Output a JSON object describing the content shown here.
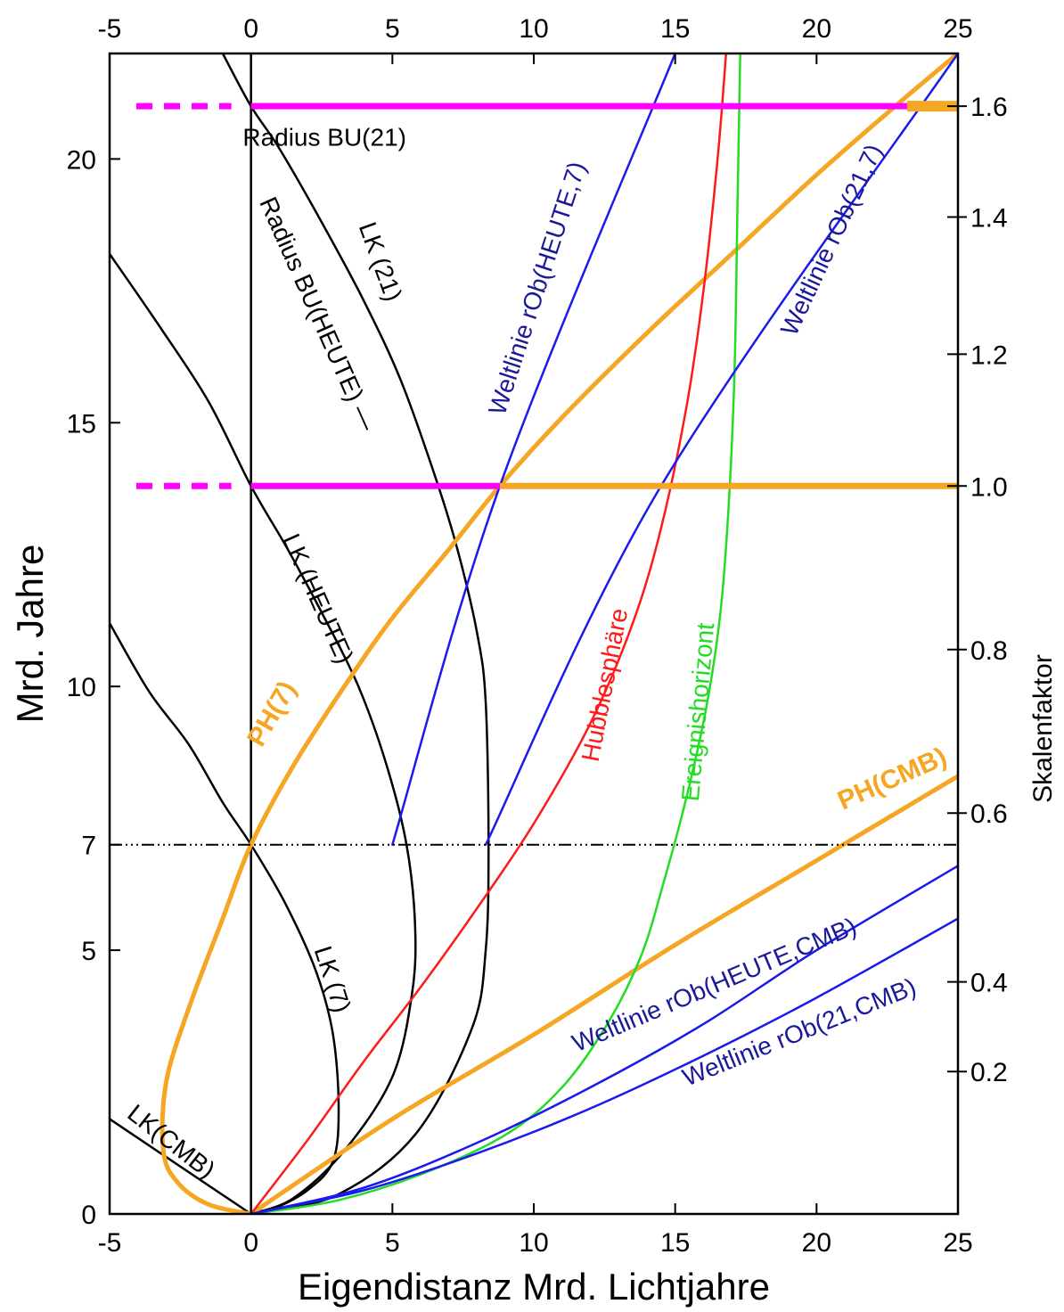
{
  "chart_data": {
    "type": "line",
    "title": "",
    "xlabel": "Eigendistanz Mrd. Lichtjahre",
    "ylabel": "Mrd. Jahre",
    "y2label": "Skalenfaktor",
    "xlim": [
      -5,
      25
    ],
    "ylim": [
      0,
      22
    ],
    "x_ticks": [
      -5,
      0,
      5,
      10,
      15,
      20,
      25
    ],
    "y_ticks": [
      0,
      5,
      7,
      10,
      15,
      20
    ],
    "y2_ticks": [
      "0.2",
      "0.4",
      "0.6",
      "0.8",
      "1.0",
      "1.2",
      "1.4",
      "1.6"
    ],
    "y2_tick_times": [
      2.7,
      4.4,
      7.6,
      10.7,
      13.8,
      16.3,
      18.9,
      21.0
    ],
    "grid": false,
    "colors": {
      "light_cone": "#000000",
      "photon_horizon": "#f5a623",
      "hubble": "#ff1a1a",
      "event_horizon": "#22dd22",
      "worldline": "#1a1aee",
      "radius": "#ff00ff",
      "annotation_blue": "#1a1a99",
      "annotation_orange": "#f5a623"
    },
    "series": [
      {
        "key": "lk_cmb",
        "name": "LK(CMB)",
        "color": "#000000",
        "width": 2.5,
        "x": [
          0,
          -5
        ],
        "y": [
          0,
          1.8
        ]
      },
      {
        "key": "lk_7",
        "name": "LK (7)",
        "color": "#000000",
        "width": 2.5,
        "x": [
          -5,
          -3.6,
          -2.2,
          -1.0,
          0,
          1.2,
          2.3,
          2.9,
          3.1,
          2.9,
          2.0,
          0.8,
          0
        ],
        "y": [
          11.2,
          9.9,
          8.9,
          7.8,
          7.0,
          5.9,
          4.6,
          3.4,
          2.0,
          1.0,
          0.45,
          0.1,
          0
        ]
      },
      {
        "key": "lk_heute",
        "name": "LK (HEUTE)",
        "color": "#000000",
        "width": 2.5,
        "x": [
          -5,
          -3.2,
          -1.5,
          0,
          1.3,
          2.6,
          3.8,
          4.8,
          5.5,
          5.8,
          5.7,
          5.0,
          3.3,
          1.5,
          0
        ],
        "y": [
          18.2,
          16.8,
          15.4,
          13.8,
          12.6,
          11.3,
          10.0,
          8.5,
          7.0,
          5.5,
          4.2,
          2.6,
          1.2,
          0.3,
          0
        ]
      },
      {
        "key": "lk_21",
        "name": "LK (21)",
        "color": "#000000",
        "width": 2.5,
        "x": [
          -1.0,
          0,
          1.0,
          2.5,
          4.0,
          5.3,
          6.5,
          7.3,
          8.0,
          8.3,
          8.4,
          8.3,
          7.8,
          5.8,
          3.0,
          0
        ],
        "y": [
          22.0,
          21.0,
          20.2,
          18.8,
          17.3,
          15.8,
          14.0,
          12.6,
          11.0,
          9.7,
          7.0,
          5.0,
          3.5,
          1.5,
          0.35,
          0
        ]
      },
      {
        "key": "bu_axis",
        "name": "",
        "color": "#000000",
        "width": 2.5,
        "x": [
          0,
          0
        ],
        "y": [
          0,
          22
        ]
      },
      {
        "key": "ph_7",
        "name": "PH(7)",
        "color": "#f5a623",
        "width": 5,
        "x": [
          0,
          -1.5,
          -2.6,
          -3.1,
          -3.0,
          -2.2,
          -1.0,
          0,
          1.5,
          3.3,
          5.0,
          7.0,
          8.8,
          11.0,
          14.0,
          17.0,
          20.0,
          23.0,
          25.0
        ],
        "y": [
          0,
          0.18,
          0.6,
          1.2,
          2.5,
          3.9,
          5.6,
          7.0,
          8.5,
          10.0,
          11.3,
          12.6,
          13.8,
          15.1,
          16.7,
          18.2,
          19.7,
          21.1,
          22.0
        ]
      },
      {
        "key": "ph_cmb",
        "name": "PH(CMB)",
        "color": "#f5a623",
        "width": 5,
        "x": [
          0,
          5,
          10,
          15,
          20,
          25
        ],
        "y": [
          0,
          1.8,
          3.4,
          5.1,
          6.7,
          8.3
        ]
      },
      {
        "key": "hubble",
        "name": "Hubblesphäre",
        "color": "#ff1a1a",
        "width": 2.5,
        "x": [
          0,
          2,
          4,
          6,
          8,
          10,
          12,
          13.5,
          14.5,
          15.4,
          16.0,
          16.5,
          16.8
        ],
        "y": [
          0,
          1.4,
          2.9,
          4.3,
          5.8,
          7.4,
          9.3,
          11.2,
          13.0,
          15.3,
          17.5,
          20.0,
          22.0
        ]
      },
      {
        "key": "event_horizon",
        "name": "Ereignishorizont",
        "color": "#22dd22",
        "width": 2.5,
        "x": [
          0,
          3,
          6,
          9,
          11,
          12.6,
          13.8,
          14.6,
          15.4,
          16.1,
          16.6,
          16.9,
          17.1,
          17.2,
          17.3
        ],
        "y": [
          0,
          0.25,
          0.75,
          1.5,
          2.4,
          3.6,
          4.9,
          6.3,
          7.9,
          9.6,
          11.4,
          13.5,
          16.0,
          19.0,
          22.0
        ]
      },
      {
        "key": "wl_heute_7",
        "name": "Weltlinie rOb(HEUTE,7)",
        "color": "#1a1aee",
        "width": 2.5,
        "x": [
          5.0,
          8.8,
          15.0
        ],
        "y": [
          7.0,
          13.8,
          22.0
        ]
      },
      {
        "key": "wl_21_7",
        "name": "Weltlinie rOb(21,7)",
        "color": "#1a1aee",
        "width": 2.5,
        "x": [
          8.3,
          14.5,
          25.0
        ],
        "y": [
          7.0,
          13.8,
          22.0
        ]
      },
      {
        "key": "wl_heute_cmb",
        "name": "Weltlinie rOb(HEUTE,CMB)",
        "color": "#1a1aee",
        "width": 2.5,
        "x": [
          0,
          4,
          8,
          12,
          16,
          20,
          25
        ],
        "y": [
          0,
          0.5,
          1.35,
          2.4,
          3.6,
          5.0,
          6.6
        ]
      },
      {
        "key": "wl_21_cmb",
        "name": "Weltlinie rOb(21,CMB)",
        "color": "#1a1aee",
        "width": 2.5,
        "x": [
          0,
          4,
          8,
          12,
          16,
          20,
          25
        ],
        "y": [
          0,
          0.45,
          1.15,
          2.0,
          3.0,
          4.1,
          5.6
        ]
      }
    ],
    "horizontal_lines": [
      {
        "key": "bu_21",
        "y": 21.0,
        "x_dotted": [
          -5,
          0
        ],
        "x_solid": [
          0,
          25
        ],
        "color": "#ff00ff",
        "width": 7
      },
      {
        "key": "bu_21_tail",
        "y": 21.0,
        "x_solid": [
          23.2,
          25
        ],
        "color": "#f5a623",
        "width": 12
      },
      {
        "key": "bu_heute",
        "y": 13.8,
        "x_dotted": [
          -5,
          0
        ],
        "x_solid": [
          0,
          8.8
        ],
        "color": "#ff00ff",
        "width": 7
      },
      {
        "key": "bu_heute_tail",
        "y": 13.8,
        "x_solid": [
          8.8,
          25
        ],
        "color": "#f5a623",
        "width": 7
      },
      {
        "key": "t7",
        "y": 7.0,
        "x_dashdot": [
          -5,
          25
        ],
        "color": "#000000",
        "width": 2
      }
    ],
    "annotations": [
      {
        "key": "radius_bu_21",
        "text": "Radius BU(21)",
        "x": 2.6,
        "y": 20.25,
        "rotate": 0,
        "color": "#000000",
        "style": "normal"
      },
      {
        "key": "radius_bu_heute",
        "text": "Radius BU(HEUTE) —",
        "x": 2.1,
        "y": 17.0,
        "rotate": 66,
        "color": "#000000",
        "style": "normal"
      },
      {
        "key": "lk21",
        "text": "LK (21)",
        "x": 4.3,
        "y": 18.0,
        "rotate": 70,
        "color": "#000000",
        "style": "normal"
      },
      {
        "key": "lkheute",
        "text": "LK (HEUTE)",
        "x": 2.1,
        "y": 11.6,
        "rotate": 66,
        "color": "#000000",
        "style": "normal"
      },
      {
        "key": "lk7",
        "text": "LK (7)",
        "x": 2.6,
        "y": 4.4,
        "rotate": 72,
        "color": "#000000",
        "style": "normal"
      },
      {
        "key": "lkcmb",
        "text": "LK(CMB)",
        "x": -3.0,
        "y": 1.25,
        "rotate": 38,
        "color": "#000000",
        "style": "normal"
      },
      {
        "key": "ph7",
        "text": "PH(7)",
        "x": 1.0,
        "y": 9.4,
        "rotate": -60,
        "color": "#f5a623",
        "style": "bold"
      },
      {
        "key": "phcmb",
        "text": "PH(CMB)",
        "x": 22.8,
        "y": 8.1,
        "rotate": -24,
        "color": "#f5a623",
        "style": "bold"
      },
      {
        "key": "hubble_lbl",
        "text": "Hubblesphäre",
        "x": 12.8,
        "y": 10.0,
        "rotate": -79,
        "color": "#ff1a1a",
        "style": "normal"
      },
      {
        "key": "ereignis_lbl",
        "text": "Ereignishorizont",
        "x": 16.1,
        "y": 9.5,
        "rotate": -85,
        "color": "#22dd22",
        "style": "normal"
      },
      {
        "key": "wl_heute_7_lbl",
        "text": "Weltlinie rOb(HEUTE,7)",
        "x": 10.4,
        "y": 17.5,
        "rotate": -72,
        "color": "#1a1a99",
        "style": "normal"
      },
      {
        "key": "wl_21_7_lbl",
        "text": "Weltlinie rOb(21,7)",
        "x": 20.8,
        "y": 18.4,
        "rotate": -65,
        "color": "#1a1a99",
        "style": "normal"
      },
      {
        "key": "wl_heute_cmb_lbl",
        "text": "Weltlinie rOb(HEUTE,CMB)",
        "x": 16.5,
        "y": 4.2,
        "rotate": -23,
        "color": "#1a1a99",
        "style": "normal"
      },
      {
        "key": "wl_21_cmb_lbl",
        "text": "Weltlinie rOb(21,CMB)",
        "x": 19.5,
        "y": 3.3,
        "rotate": -22,
        "color": "#1a1a99",
        "style": "normal"
      }
    ]
  }
}
